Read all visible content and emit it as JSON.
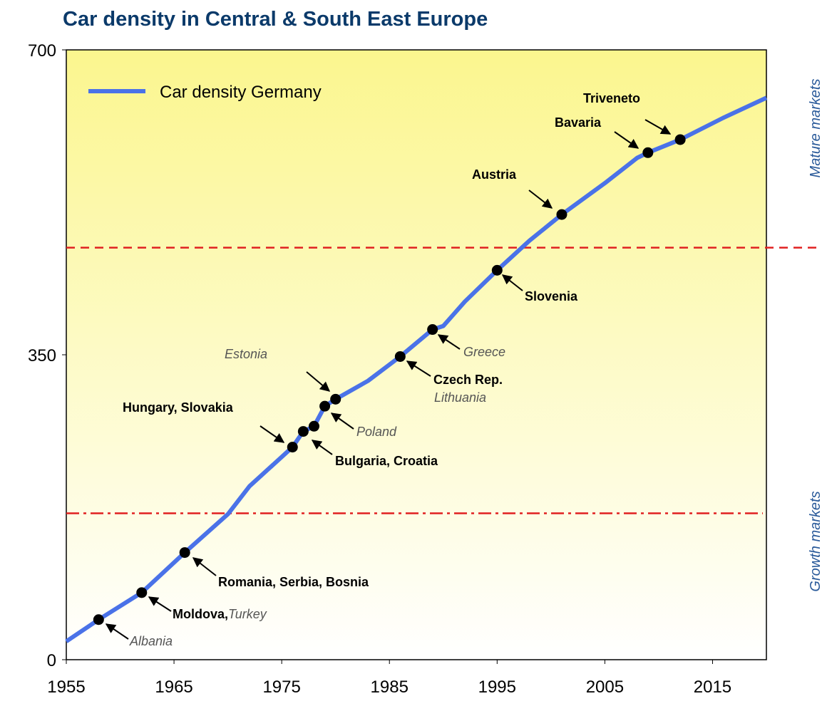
{
  "chart_data": {
    "type": "line",
    "title": "Car density in Central & South East Europe",
    "xlim": [
      1955,
      2020
    ],
    "xticks": [
      1955,
      1965,
      1975,
      1985,
      1995,
      2005,
      2015
    ],
    "ylim": [
      0,
      700
    ],
    "yticks": [
      0,
      350,
      700
    ],
    "legend": "top-left",
    "series": [
      {
        "name": "Car density Germany",
        "color": "#4a72e8",
        "x": [
          1955,
          1958,
          1962,
          1966,
          1970,
          1972,
          1976,
          1977,
          1978,
          1979,
          1980,
          1983,
          1986,
          1989,
          1990,
          1992,
          1995,
          1998,
          2001,
          2005,
          2008,
          2009,
          2012,
          2016,
          2020
        ],
        "values": [
          21,
          46,
          77,
          123,
          167,
          199,
          244,
          262,
          268,
          291,
          299,
          320,
          348,
          379,
          383,
          411,
          447,
          481,
          511,
          547,
          576,
          582,
          597,
          622,
          645
        ]
      }
    ],
    "markers": {
      "color": "#000000",
      "x": [
        1958,
        1962,
        1966,
        1976,
        1977,
        1978,
        1979,
        1980,
        1986,
        1989,
        1995,
        2001,
        2009,
        2012
      ],
      "values": [
        46,
        77,
        123,
        244,
        262,
        268,
        291,
        299,
        348,
        379,
        447,
        511,
        582,
        597
      ]
    },
    "annotations": [
      "Albania",
      "Moldova",
      ",",
      "Turkey",
      "Romania, Serbia, Bosnia",
      "Hungary, Slovakia",
      "Bulgaria, Croatia",
      "Poland",
      "Estonia",
      "Czech Rep.",
      "Lithuania",
      "Greece",
      "Slovenia",
      "Austria",
      "Bavaria",
      "Triveneto"
    ],
    "reference_lines": [
      {
        "value": 473,
        "style": "dashed",
        "color": "#e02020",
        "label": "Mature markets"
      },
      {
        "value": 168,
        "style": "dashdot",
        "color": "#e02020",
        "label": "Growth markets"
      }
    ]
  }
}
